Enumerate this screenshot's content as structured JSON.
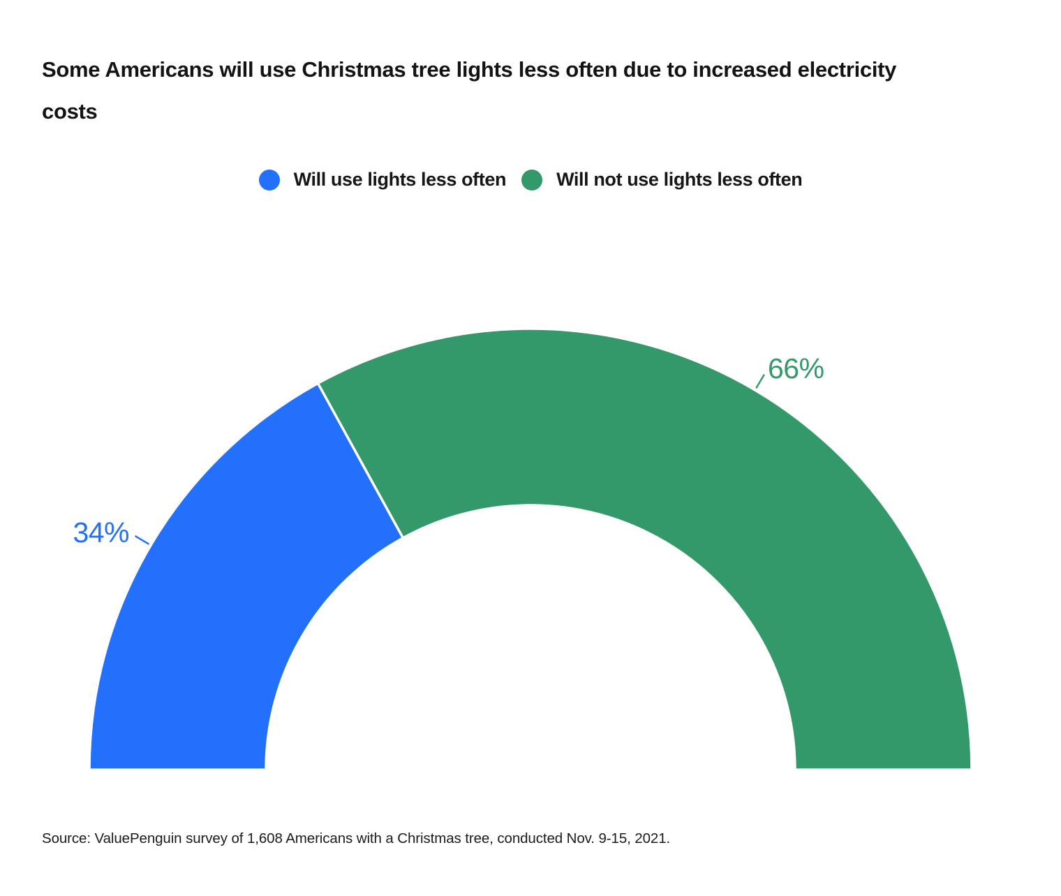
{
  "page": {
    "background_color": "#ffffff"
  },
  "title": {
    "line1": "Some Americans will use Christmas tree lights less often due to increased electricity",
    "line2": "costs",
    "full": "Some Americans will use Christmas tree lights less often due to increased electricity costs"
  },
  "legend": {
    "items": [
      {
        "label": "Will use lights less often",
        "color": "#2270FB"
      },
      {
        "label": "Will not use lights less often",
        "color": "#34996A"
      }
    ]
  },
  "chart_data": {
    "type": "pie",
    "subtype": "half-donut",
    "title": "Some Americans will use Christmas tree lights less often due to increased electricity costs",
    "categories": [
      "Will use lights less often",
      "Will not use lights less often"
    ],
    "values": [
      34,
      66
    ],
    "unit": "%",
    "labels": [
      "34%",
      "66%"
    ],
    "colors": [
      "#2270FB",
      "#34996A"
    ],
    "start_angle_deg": 180,
    "end_angle_deg": 0,
    "inner_radius_ratio": 0.6,
    "separator_color": "#ffffff",
    "legend_position": "top",
    "label_style": "outside-with-leader-line"
  },
  "source": {
    "text": "Source: ValuePenguin survey of 1,608 Americans with a Christmas tree, conducted Nov. 9-15, 2021."
  }
}
